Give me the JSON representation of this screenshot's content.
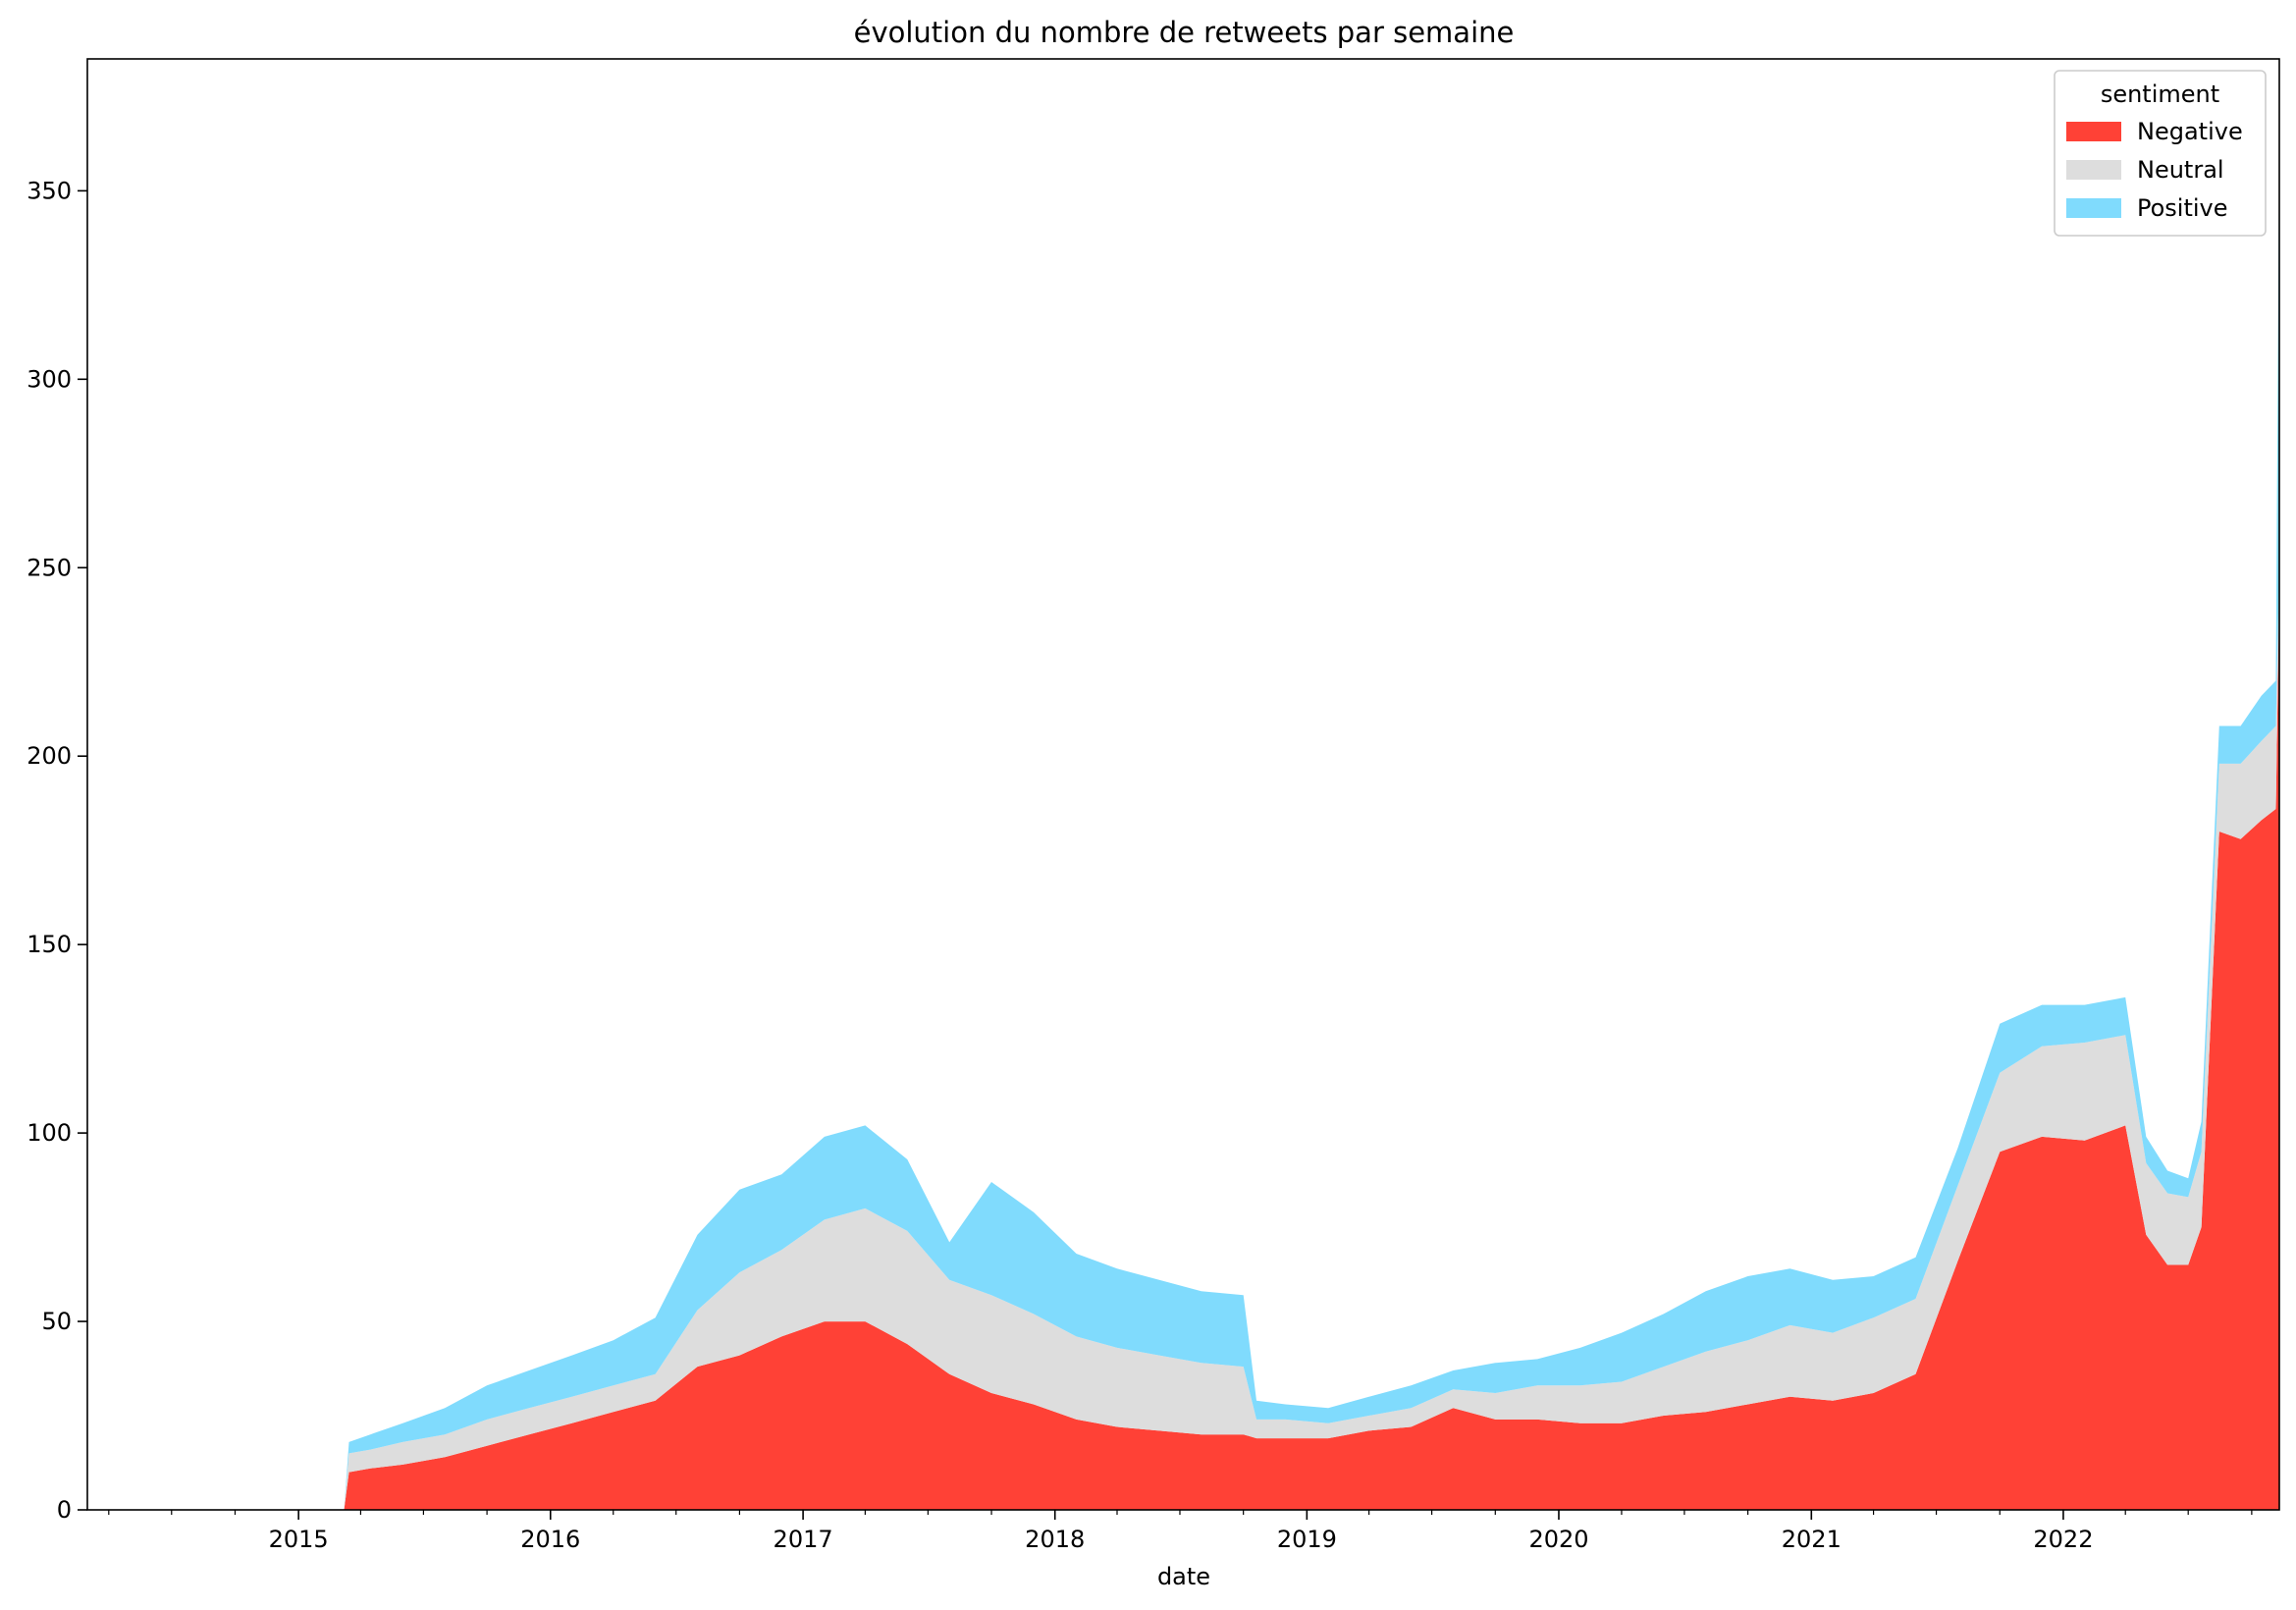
{
  "chart_data": {
    "type": "area",
    "stacked": true,
    "title": "évolution du nombre de retweets par semaine",
    "xlabel": "date",
    "ylabel": "",
    "xlim": [
      "2014-03-01",
      "2022-11-10"
    ],
    "ylim": [
      0,
      385
    ],
    "x_ticks": [
      "2015",
      "2016",
      "2017",
      "2018",
      "2019",
      "2020",
      "2021",
      "2022"
    ],
    "y_ticks": [
      0,
      50,
      100,
      150,
      200,
      250,
      300,
      350
    ],
    "grid": false,
    "legend": {
      "title": "sentiment",
      "position": "top-right"
    },
    "x": [
      "2014-03-01",
      "2015-03-08",
      "2015-03-15",
      "2015-04-15",
      "2015-06-01",
      "2015-08-01",
      "2015-10-01",
      "2015-12-01",
      "2016-02-01",
      "2016-04-01",
      "2016-06-01",
      "2016-08-01",
      "2016-10-01",
      "2016-12-01",
      "2017-02-01",
      "2017-04-01",
      "2017-06-01",
      "2017-08-01",
      "2017-10-01",
      "2017-12-01",
      "2018-02-01",
      "2018-04-01",
      "2018-06-01",
      "2018-08-01",
      "2018-10-01",
      "2018-10-20",
      "2018-12-01",
      "2019-02-01",
      "2019-04-01",
      "2019-06-01",
      "2019-08-01",
      "2019-10-01",
      "2019-12-01",
      "2020-02-01",
      "2020-04-01",
      "2020-06-01",
      "2020-08-01",
      "2020-10-01",
      "2020-12-01",
      "2021-02-01",
      "2021-04-01",
      "2021-06-01",
      "2021-08-01",
      "2021-10-01",
      "2021-12-01",
      "2022-02-01",
      "2022-04-01",
      "2022-05-01",
      "2022-06-01",
      "2022-07-01",
      "2022-07-20",
      "2022-08-15",
      "2022-09-15",
      "2022-10-15",
      "2022-11-05",
      "2022-11-10"
    ],
    "series": [
      {
        "name": "Negative",
        "color": "#ff4136",
        "values": [
          0,
          0,
          10,
          11,
          12,
          14,
          17,
          20,
          23,
          26,
          29,
          38,
          41,
          46,
          50,
          50,
          44,
          36,
          31,
          28,
          24,
          22,
          21,
          20,
          20,
          19,
          19,
          19,
          21,
          22,
          27,
          24,
          24,
          23,
          23,
          25,
          26,
          28,
          30,
          29,
          31,
          36,
          66,
          95,
          99,
          98,
          102,
          73,
          65,
          65,
          75,
          180,
          178,
          183,
          186,
          245
        ]
      },
      {
        "name": "Neutral",
        "color": "#dddddd",
        "values": [
          0,
          0,
          5,
          5,
          6,
          6,
          7,
          7,
          7,
          7,
          7,
          15,
          22,
          23,
          27,
          30,
          30,
          25,
          26,
          24,
          22,
          21,
          20,
          19,
          18,
          5,
          5,
          4,
          4,
          5,
          5,
          7,
          9,
          10,
          11,
          13,
          16,
          17,
          19,
          18,
          20,
          20,
          20,
          21,
          24,
          26,
          24,
          19,
          19,
          18,
          20,
          18,
          20,
          21,
          22,
          5
        ]
      },
      {
        "name": "Positive",
        "color": "#80dbfd",
        "values": [
          0,
          0,
          3,
          4,
          5,
          7,
          9,
          10,
          11,
          12,
          15,
          20,
          22,
          20,
          22,
          22,
          19,
          10,
          30,
          27,
          22,
          21,
          20,
          19,
          19,
          5,
          4,
          4,
          5,
          6,
          5,
          8,
          7,
          10,
          13,
          14,
          16,
          17,
          15,
          14,
          11,
          11,
          10,
          13,
          11,
          10,
          10,
          7,
          6,
          5,
          8,
          10,
          10,
          12,
          12,
          117
        ]
      }
    ]
  }
}
